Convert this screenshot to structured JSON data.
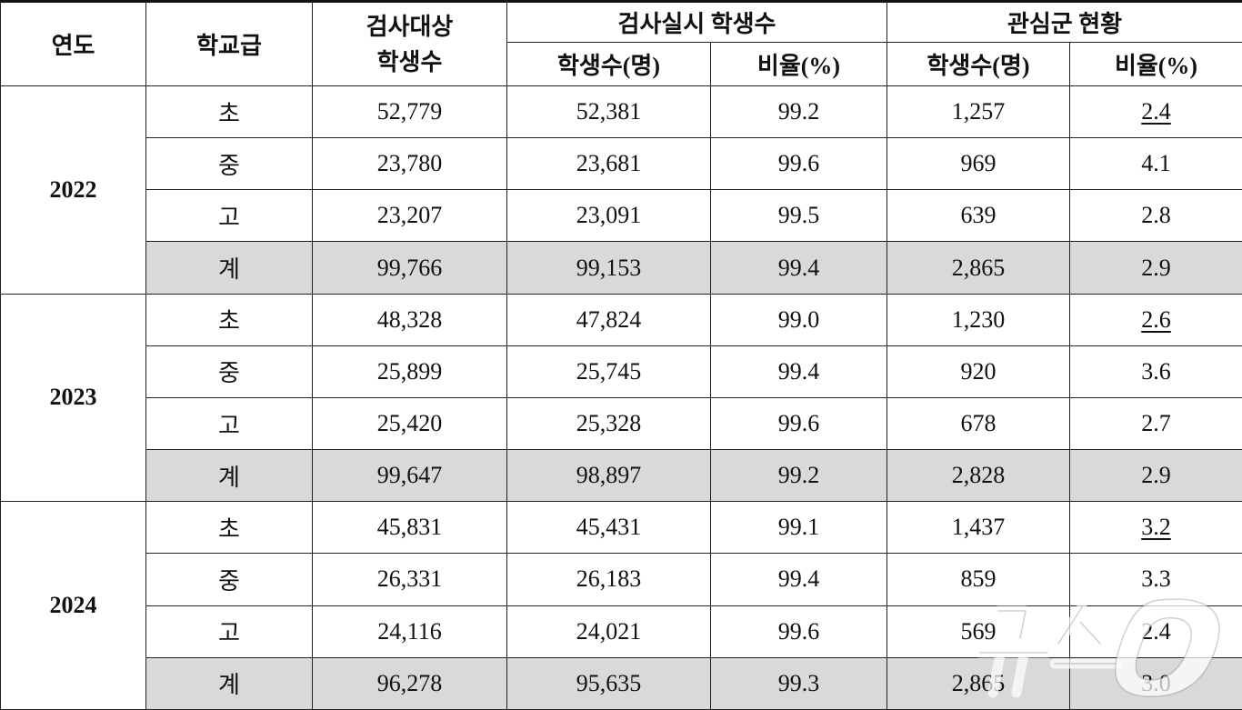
{
  "header": {
    "year": "연도",
    "school_level": "학교급",
    "target_students": "검사대상\n학생수",
    "tested_group": "검사실시 학생수",
    "concern_group": "관심군 현황",
    "students_count": "학생수(명)",
    "ratio": "비율(%)"
  },
  "groups": [
    {
      "year": "2022",
      "rows": [
        {
          "level": "초",
          "target": "52,779",
          "tested": "52,381",
          "tested_ratio": "99.2",
          "concern": "1,257",
          "concern_ratio": "2.4",
          "underline": true
        },
        {
          "level": "중",
          "target": "23,780",
          "tested": "23,681",
          "tested_ratio": "99.6",
          "concern": "969",
          "concern_ratio": "4.1"
        },
        {
          "level": "고",
          "target": "23,207",
          "tested": "23,091",
          "tested_ratio": "99.5",
          "concern": "639",
          "concern_ratio": "2.8"
        },
        {
          "level": "계",
          "target": "99,766",
          "tested": "99,153",
          "tested_ratio": "99.4",
          "concern": "2,865",
          "concern_ratio": "2.9",
          "total": true
        }
      ]
    },
    {
      "year": "2023",
      "rows": [
        {
          "level": "초",
          "target": "48,328",
          "tested": "47,824",
          "tested_ratio": "99.0",
          "concern": "1,230",
          "concern_ratio": "2.6",
          "underline": true
        },
        {
          "level": "중",
          "target": "25,899",
          "tested": "25,745",
          "tested_ratio": "99.4",
          "concern": "920",
          "concern_ratio": "3.6"
        },
        {
          "level": "고",
          "target": "25,420",
          "tested": "25,328",
          "tested_ratio": "99.6",
          "concern": "678",
          "concern_ratio": "2.7"
        },
        {
          "level": "계",
          "target": "99,647",
          "tested": "98,897",
          "tested_ratio": "99.2",
          "concern": "2,828",
          "concern_ratio": "2.9",
          "total": true
        }
      ]
    },
    {
      "year": "2024",
      "rows": [
        {
          "level": "초",
          "target": "45,831",
          "tested": "45,431",
          "tested_ratio": "99.1",
          "concern": "1,437",
          "concern_ratio": "3.2",
          "underline": true
        },
        {
          "level": "중",
          "target": "26,331",
          "tested": "26,183",
          "tested_ratio": "99.4",
          "concern": "859",
          "concern_ratio": "3.3"
        },
        {
          "level": "고",
          "target": "24,116",
          "tested": "24,021",
          "tested_ratio": "99.6",
          "concern": "569",
          "concern_ratio": "2.4"
        },
        {
          "level": "계",
          "target": "96,278",
          "tested": "95,635",
          "tested_ratio": "99.3",
          "concern": "2,865",
          "concern_ratio": "3.0",
          "total": true
        }
      ]
    }
  ],
  "watermark": "뉴스1",
  "colors": {
    "total_row_bg": "#d9d9d9",
    "border": "#222222"
  }
}
